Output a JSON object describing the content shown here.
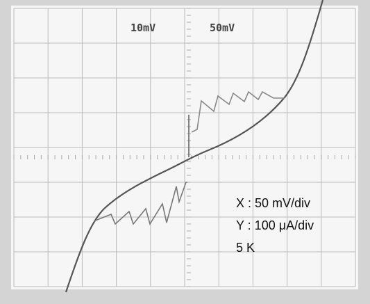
{
  "header": {
    "channel_1_scale": "10mV",
    "channel_2_scale": "50mV"
  },
  "annotations": [
    "X : 50 mV/div",
    "Y : 100 μA/div",
    "5 K"
  ]
}
